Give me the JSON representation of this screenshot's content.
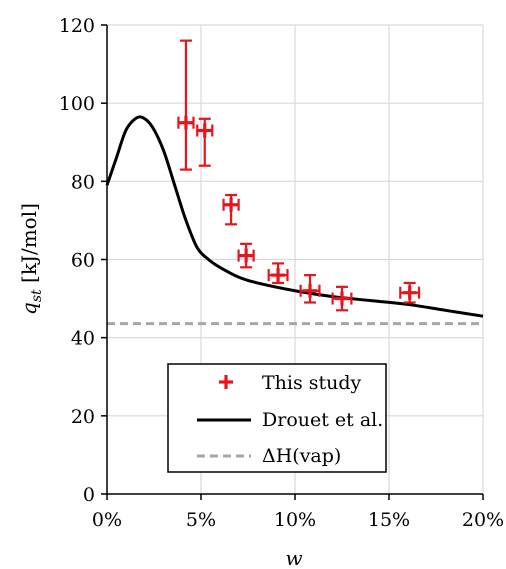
{
  "chart_data": {
    "type": "scatter",
    "xlabel": "w",
    "ylabel": "q_st [kJ/mol]",
    "ylabel_main": "q",
    "ylabel_sub": "st",
    "ylabel_unit": " [kJ/mol]",
    "xlim": [
      0,
      20
    ],
    "ylim": [
      0,
      120
    ],
    "x_ticks": [
      0,
      5,
      10,
      15,
      20
    ],
    "x_tick_labels": [
      "0%",
      "5%",
      "10%",
      "15%",
      "20%"
    ],
    "y_ticks": [
      0,
      20,
      40,
      60,
      80,
      100,
      120
    ],
    "y_tick_labels": [
      "0",
      "20",
      "40",
      "60",
      "80",
      "100",
      "120"
    ],
    "grid": true,
    "legend_position": "bottom-center",
    "colors": {
      "this_study": "#e8141c",
      "drouet": "#000000",
      "dh_vap": "#a6a6a6",
      "grid": "#d9d9d9"
    },
    "series": [
      {
        "name": "This study",
        "kind": "points_with_error",
        "points": [
          {
            "x": 4.2,
            "y": 95,
            "y_low": 83,
            "y_high": 116,
            "x_err": 0.4
          },
          {
            "x": 5.2,
            "y": 93,
            "y_low": 84,
            "y_high": 96,
            "x_err": 0.4
          },
          {
            "x": 6.6,
            "y": 74,
            "y_low": 69,
            "y_high": 76.5,
            "x_err": 0.4
          },
          {
            "x": 7.4,
            "y": 61,
            "y_low": 58,
            "y_high": 64,
            "x_err": 0.4
          },
          {
            "x": 9.1,
            "y": 56,
            "y_low": 54,
            "y_high": 59,
            "x_err": 0.5
          },
          {
            "x": 10.8,
            "y": 52,
            "y_low": 49,
            "y_high": 56,
            "x_err": 0.5
          },
          {
            "x": 12.5,
            "y": 50,
            "y_low": 47,
            "y_high": 53,
            "x_err": 0.5
          },
          {
            "x": 16.1,
            "y": 51.5,
            "y_low": 49,
            "y_high": 54,
            "x_err": 0.5
          }
        ]
      },
      {
        "name": "Drouet et al.",
        "kind": "line",
        "x": [
          0,
          0.5,
          1.0,
          1.5,
          1.9,
          2.4,
          3.0,
          3.6,
          4.2,
          4.8,
          5.4,
          6.0,
          7.0,
          8.0,
          10.0,
          12.0,
          14.0,
          16.0,
          18.0,
          20.0
        ],
        "y": [
          79,
          86,
          93,
          96,
          96.3,
          94,
          88,
          79,
          70,
          63,
          60,
          58,
          55.5,
          54,
          52,
          50.5,
          49.5,
          48.5,
          47,
          45.5
        ]
      },
      {
        "name": "ΔH(vap)",
        "kind": "hline",
        "y": 43.6
      }
    ]
  }
}
